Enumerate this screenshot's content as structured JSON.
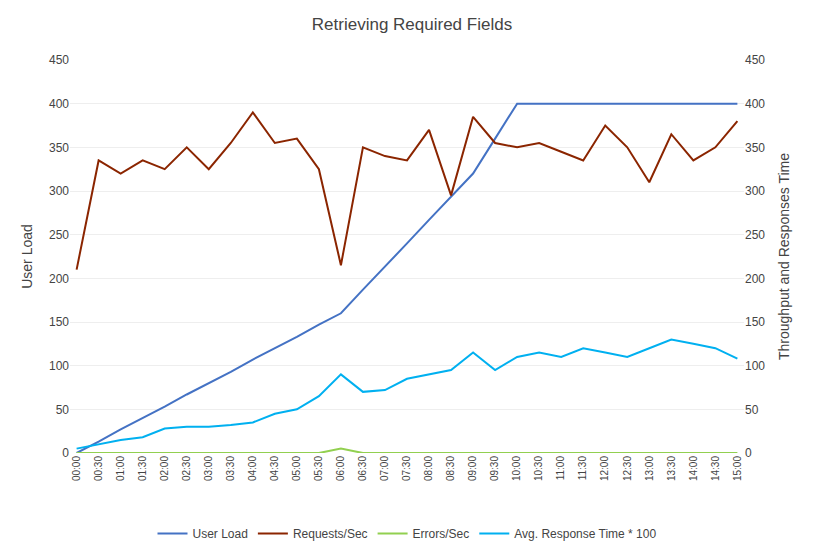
{
  "chart_data": {
    "type": "line",
    "title": "Retrieving Required Fields",
    "ylabel": "User Load",
    "y2label": "Throughput and Responses Time",
    "categories": [
      "00:00",
      "00:30",
      "01:00",
      "01:30",
      "02:00",
      "02:30",
      "03:00",
      "03:30",
      "04:00",
      "04:30",
      "05:00",
      "05:30",
      "06:00",
      "06:30",
      "07:00",
      "07:30",
      "08:00",
      "08:30",
      "09:00",
      "09:30",
      "10:00",
      "10:30",
      "11:00",
      "11:30",
      "12:00",
      "12:30",
      "13:00",
      "13:30",
      "14:00",
      "14:30",
      "15:00"
    ],
    "series": [
      {
        "name": "User Load",
        "color": "#4472C4",
        "axis": "y",
        "values": [
          0,
          13,
          27,
          40,
          53,
          67,
          80,
          93,
          107,
          120,
          133,
          147,
          160,
          187,
          213,
          240,
          267,
          293,
          320,
          360,
          400,
          400,
          400,
          400,
          400,
          400,
          400,
          400,
          400,
          400,
          400
        ]
      },
      {
        "name": "Requests/Sec",
        "color": "#8B2500",
        "axis": "y2",
        "values": [
          210,
          335,
          320,
          335,
          325,
          350,
          325,
          355,
          390,
          355,
          360,
          325,
          215,
          350,
          340,
          335,
          370,
          295,
          385,
          355,
          350,
          355,
          345,
          335,
          375,
          350,
          310,
          365,
          335,
          350,
          380
        ]
      },
      {
        "name": "Errors/Sec",
        "color": "#92D050",
        "axis": "y2",
        "values": [
          0,
          0,
          0,
          0,
          0,
          0,
          0,
          0,
          0,
          0,
          0,
          0,
          5,
          0,
          0,
          0,
          0,
          0,
          0,
          0,
          0,
          0,
          0,
          0,
          0,
          0,
          0,
          0,
          0,
          0,
          0
        ]
      },
      {
        "name": "Avg. Response Time * 100",
        "color": "#00B0F0",
        "axis": "y2",
        "values": [
          5,
          10,
          15,
          18,
          28,
          30,
          30,
          32,
          35,
          45,
          50,
          65,
          90,
          70,
          72,
          85,
          90,
          95,
          115,
          95,
          110,
          115,
          110,
          120,
          115,
          110,
          120,
          130,
          125,
          120,
          108
        ]
      }
    ],
    "ylim": [
      0,
      450
    ],
    "yticks": [
      0,
      50,
      100,
      150,
      200,
      250,
      300,
      350,
      400,
      450
    ],
    "y2lim": [
      0,
      450
    ],
    "y2ticks": [
      0,
      50,
      100,
      150,
      200,
      250,
      300,
      350,
      400,
      450
    ],
    "grid": true,
    "legend": "bottom"
  }
}
